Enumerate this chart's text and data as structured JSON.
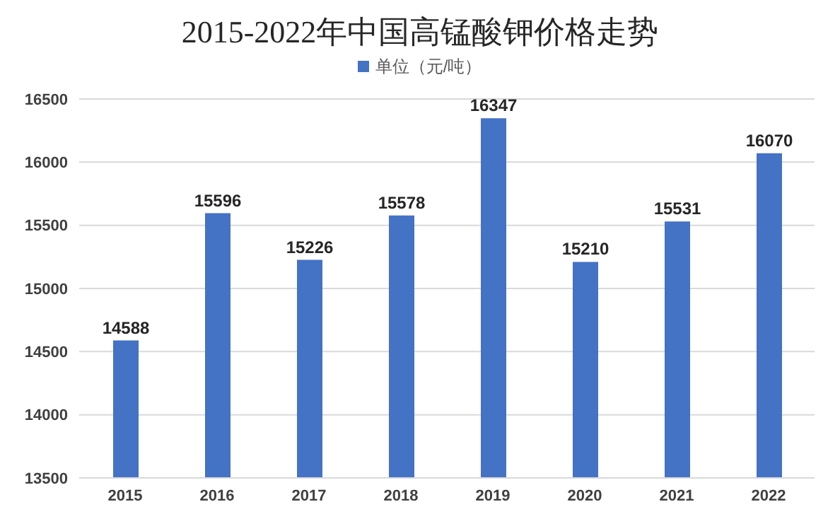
{
  "chart_data": {
    "type": "bar",
    "title": "2015-2022年中国高锰酸钾价格走势",
    "categories": [
      "2015",
      "2016",
      "2017",
      "2018",
      "2019",
      "2020",
      "2021",
      "2022"
    ],
    "series": [
      {
        "name": "单位（元/吨）",
        "color": "#4472c4",
        "values": [
          14588,
          15596,
          15226,
          15578,
          16347,
          15210,
          15531,
          16070
        ]
      }
    ],
    "ylim": [
      13500,
      16500
    ],
    "yticks": [
      13500,
      14000,
      14500,
      15000,
      15500,
      16000,
      16500
    ],
    "grid": "y",
    "legend": "top",
    "data_labels": true
  }
}
